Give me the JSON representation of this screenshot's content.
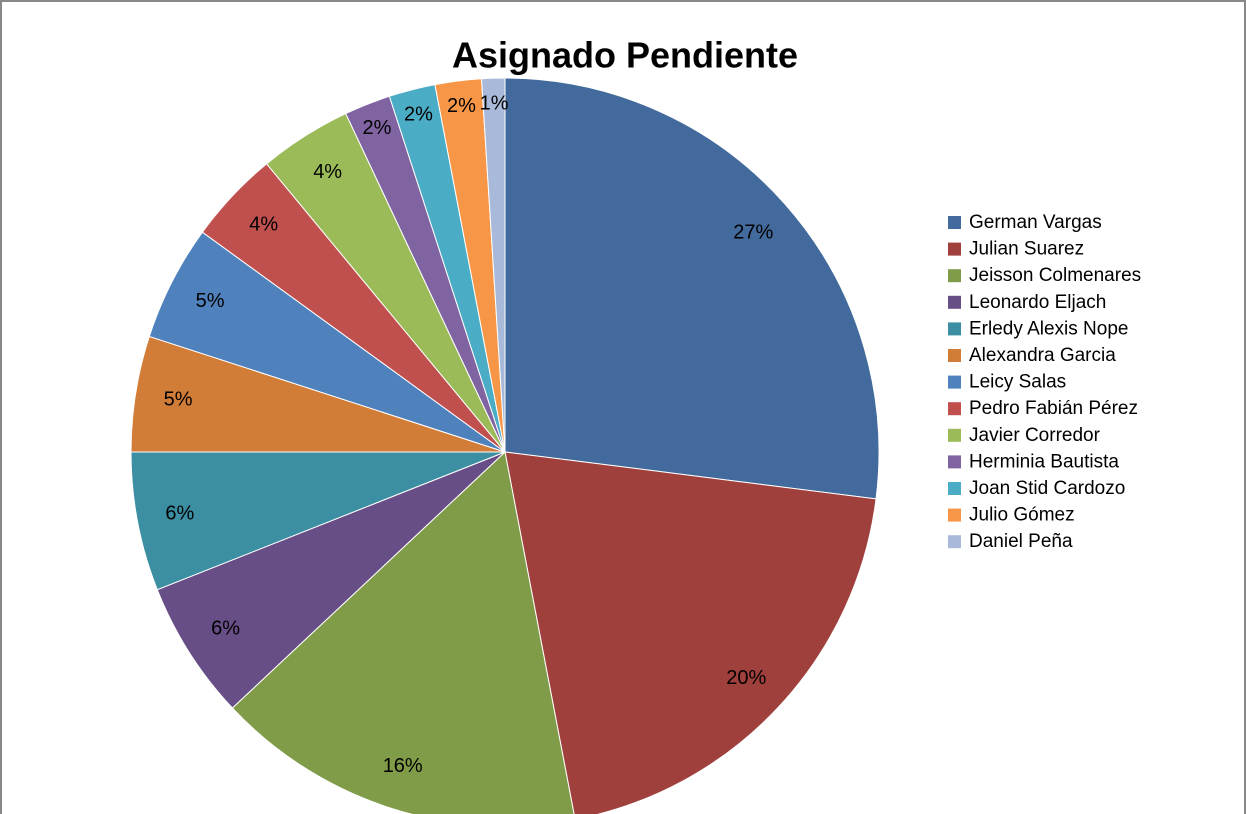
{
  "chart_data": {
    "type": "pie",
    "title": "Asignado Pendiente",
    "categories": [
      "German Vargas",
      "Julian Suarez",
      "Jeisson Colmenares",
      "Leonardo Eljach",
      "Erledy Alexis Nope",
      "Alexandra Garcia",
      "Leicy Salas",
      "Pedro Fabián Pérez",
      "Javier Corredor",
      "Herminia Bautista",
      "Joan Stid Cardozo",
      "Julio Gómez",
      "Daniel Peña"
    ],
    "values": [
      27,
      20,
      16,
      6,
      6,
      5,
      5,
      4,
      4,
      2,
      2,
      2,
      1
    ],
    "value_labels": [
      "27%",
      "20%",
      "16%",
      "6%",
      "6%",
      "5%",
      "5%",
      "4%",
      "4%",
      "2%",
      "2%",
      "2%",
      "1%"
    ],
    "colors": [
      "#426a9c",
      "#a0403d",
      "#809c48",
      "#684e87",
      "#3c8ea2",
      "#d17d37",
      "#4f81bd",
      "#c0504d",
      "#9bbb59",
      "#8064a2",
      "#4bacc6",
      "#f79646",
      "#a9b9d9"
    ],
    "legend": "right"
  }
}
